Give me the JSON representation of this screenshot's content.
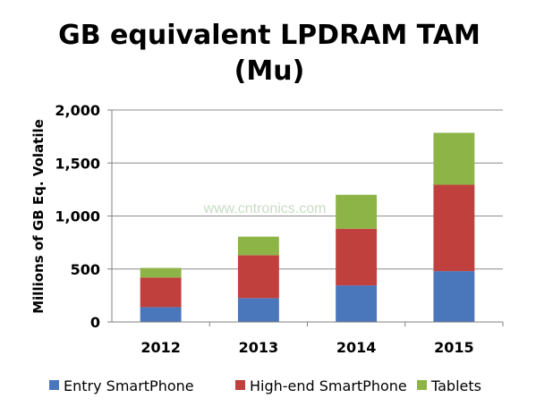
{
  "chart_data": {
    "type": "bar",
    "stacked": true,
    "title_line1": "GB equivalent LPDRAM TAM",
    "title_line2": "(Mu)",
    "xlabel": "",
    "ylabel": "Millions of GB Eq. Volatile",
    "categories": [
      "2012",
      "2013",
      "2014",
      "2015"
    ],
    "series": [
      {
        "name": "Entry SmartPhone",
        "color": "#4a76bb",
        "values": [
          140,
          225,
          345,
          480
        ]
      },
      {
        "name": "High-end SmartPhone",
        "color": "#c0403d",
        "values": [
          280,
          405,
          535,
          815
        ]
      },
      {
        "name": "Tablets",
        "color": "#8db446",
        "values": [
          90,
          175,
          320,
          490
        ]
      }
    ],
    "ylim": [
      0,
      2000
    ],
    "yticks": [
      {
        "value": 0,
        "label": "0"
      },
      {
        "value": 500,
        "label": "500"
      },
      {
        "value": 1000,
        "label": "1,000"
      },
      {
        "value": 1500,
        "label": "1,500"
      },
      {
        "value": 2000,
        "label": "2,000"
      }
    ],
    "grid": true,
    "legend_position": "bottom"
  },
  "watermark": "www.cntronics.com"
}
